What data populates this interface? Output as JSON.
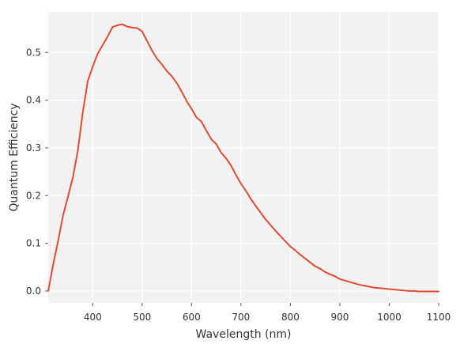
{
  "chart_data": {
    "type": "line",
    "title": "",
    "xlabel": "Wavelength (nm)",
    "ylabel": "Quantum Efficiency",
    "xlim": [
      310,
      1100
    ],
    "ylim": [
      -0.025,
      0.585
    ],
    "xticks": [
      400,
      500,
      600,
      700,
      800,
      900,
      1000,
      1100
    ],
    "yticks": [
      0.0,
      0.1,
      0.2,
      0.3,
      0.4,
      0.5
    ],
    "ytick_labels": [
      "0.0",
      "0.1",
      "0.2",
      "0.3",
      "0.4",
      "0.5"
    ],
    "grid": true,
    "legend": "none",
    "background_color": "#f2f2f2",
    "grid_color": "#ffffff",
    "series": [
      {
        "color": "#e24a33",
        "x": [
          310,
          320,
          330,
          340,
          350,
          360,
          370,
          380,
          390,
          400,
          410,
          420,
          430,
          440,
          450,
          460,
          470,
          480,
          490,
          500,
          510,
          520,
          530,
          540,
          550,
          560,
          570,
          580,
          590,
          600,
          610,
          620,
          630,
          640,
          650,
          660,
          670,
          680,
          690,
          700,
          710,
          720,
          730,
          740,
          750,
          760,
          770,
          780,
          790,
          800,
          810,
          820,
          830,
          840,
          850,
          860,
          870,
          880,
          890,
          900,
          910,
          920,
          930,
          940,
          950,
          960,
          970,
          980,
          990,
          1000,
          1010,
          1020,
          1030,
          1040,
          1050,
          1060,
          1070,
          1080,
          1090,
          1100
        ],
        "y": [
          0.0,
          0.055,
          0.105,
          0.158,
          0.198,
          0.238,
          0.295,
          0.375,
          0.44,
          0.47,
          0.497,
          0.515,
          0.533,
          0.553,
          0.557,
          0.559,
          0.554,
          0.552,
          0.551,
          0.544,
          0.524,
          0.504,
          0.487,
          0.475,
          0.461,
          0.45,
          0.436,
          0.418,
          0.398,
          0.382,
          0.364,
          0.355,
          0.336,
          0.318,
          0.308,
          0.29,
          0.278,
          0.263,
          0.243,
          0.225,
          0.21,
          0.193,
          0.178,
          0.164,
          0.15,
          0.138,
          0.126,
          0.115,
          0.104,
          0.093,
          0.085,
          0.076,
          0.068,
          0.06,
          0.052,
          0.047,
          0.04,
          0.035,
          0.031,
          0.025,
          0.022,
          0.019,
          0.016,
          0.013,
          0.011,
          0.009,
          0.007,
          0.006,
          0.005,
          0.004,
          0.003,
          0.002,
          0.001,
          0.0,
          0.0,
          -0.001,
          -0.001,
          -0.001,
          -0.001,
          -0.001
        ]
      }
    ]
  }
}
